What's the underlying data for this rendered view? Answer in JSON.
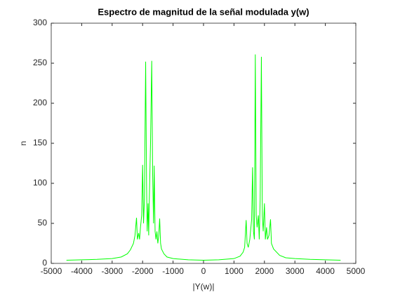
{
  "chart_data": {
    "type": "line",
    "title": "Espectro de magnitud de la señal modulada y(w)",
    "xlabel": "|Y(w)|",
    "ylabel": "n",
    "x": [
      -4500,
      -4000,
      -3500,
      -3000,
      -2700,
      -2500,
      -2400,
      -2300,
      -2250,
      -2200,
      -2170,
      -2130,
      -2100,
      -2070,
      -2030,
      -2000,
      -1970,
      -1940,
      -1900,
      -1870,
      -1850,
      -1820,
      -1800,
      -1780,
      -1740,
      -1700,
      -1670,
      -1640,
      -1620,
      -1590,
      -1560,
      -1530,
      -1500,
      -1470,
      -1440,
      -1410,
      -1380,
      -1300,
      -1200,
      -1000,
      -500,
      0,
      500,
      1000,
      1200,
      1300,
      1350,
      1400,
      1430,
      1470,
      1520,
      1580,
      1610,
      1640,
      1670,
      1700,
      1730,
      1760,
      1800,
      1830,
      1860,
      1900,
      1930,
      1960,
      2000,
      2030,
      2070,
      2100,
      2150,
      2200,
      2230,
      2300,
      2500,
      2700,
      3000,
      3500,
      4000,
      4500
    ],
    "series": [
      {
        "name": "|Y(w)|",
        "color": "#00ff00",
        "values": [
          4,
          4.5,
          5,
          6,
          8,
          12,
          17,
          25,
          35,
          57,
          30,
          38,
          30,
          45,
          60,
          123,
          50,
          80,
          252,
          100,
          40,
          75,
          35,
          80,
          150,
          253,
          110,
          50,
          122,
          40,
          30,
          40,
          25,
          35,
          56,
          25,
          18,
          12,
          8,
          6,
          4.5,
          4,
          4.5,
          6,
          9,
          14,
          20,
          54,
          25,
          20,
          30,
          55,
          120,
          40,
          30,
          261,
          60,
          45,
          60,
          30,
          80,
          258,
          60,
          40,
          75,
          30,
          45,
          30,
          35,
          55,
          25,
          18,
          10,
          7,
          6,
          5,
          4.5,
          4
        ]
      }
    ],
    "xlim": [
      -5000,
      5000
    ],
    "xticks": [
      -5000,
      -4000,
      -3000,
      -2000,
      -1000,
      0,
      1000,
      2000,
      3000,
      4000,
      5000
    ],
    "ylim": [
      0,
      300
    ],
    "yticks": [
      0,
      50,
      100,
      150,
      200,
      250,
      300
    ],
    "grid": false
  }
}
